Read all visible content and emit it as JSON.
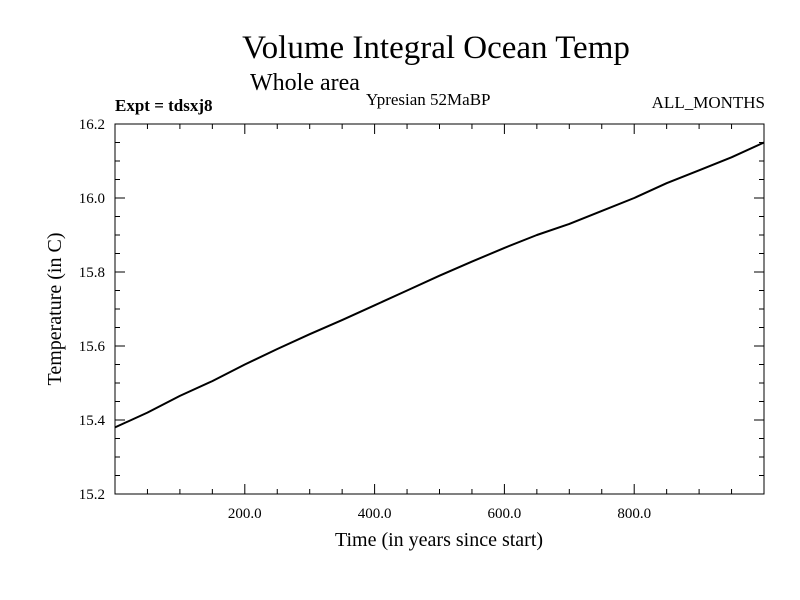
{
  "header": {
    "title": "Volume Integral Ocean Temp",
    "subtitle": "Whole area",
    "experiment": "Expt = tdsxj8",
    "period": "Ypresian  52MaBP",
    "months": "ALL_MONTHS"
  },
  "chart_data": {
    "type": "line",
    "title": "Volume Integral Ocean Temp",
    "subtitle": "Whole area",
    "xlabel": "Time (in years since start)",
    "ylabel": "Temperature (in C)",
    "xlim": [
      0,
      1000
    ],
    "ylim": [
      15.2,
      16.2
    ],
    "x_ticks": [
      200,
      400,
      600,
      800
    ],
    "x_tick_labels": [
      "200.0",
      "400.0",
      "600.0",
      "800.0"
    ],
    "y_ticks": [
      15.2,
      15.4,
      15.6,
      15.8,
      16.0,
      16.2
    ],
    "y_tick_labels": [
      "15.2",
      "15.4",
      "15.6",
      "15.8",
      "16.0",
      "16.2"
    ],
    "grid": false,
    "series": [
      {
        "name": "tdsxj8",
        "x": [
          0,
          50,
          100,
          150,
          200,
          250,
          300,
          350,
          400,
          450,
          500,
          550,
          600,
          650,
          700,
          750,
          800,
          850,
          900,
          950,
          1000
        ],
        "y": [
          15.38,
          15.42,
          15.465,
          15.505,
          15.55,
          15.592,
          15.632,
          15.67,
          15.71,
          15.75,
          15.79,
          15.828,
          15.865,
          15.9,
          15.93,
          15.965,
          16.0,
          16.04,
          16.075,
          16.11,
          16.15
        ]
      }
    ]
  }
}
